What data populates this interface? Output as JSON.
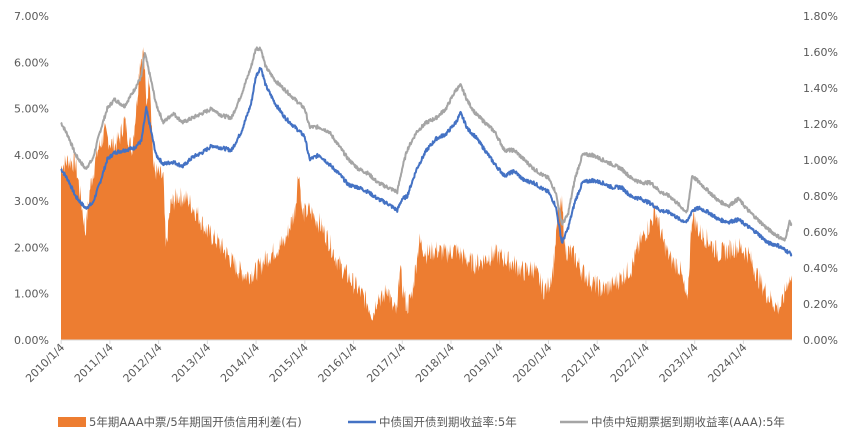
{
  "chart_data": {
    "type": "line",
    "title": "",
    "x_axis": {
      "ticks": [
        "2010/1/4",
        "2011/1/4",
        "2012/1/4",
        "2013/1/4",
        "2014/1/4",
        "2015/1/4",
        "2016/1/4",
        "2017/1/4",
        "2018/1/4",
        "2019/1/4",
        "2020/1/4",
        "2021/1/4",
        "2022/1/4",
        "2023/1/4",
        "2024/1/4"
      ],
      "range": [
        "2010/1/4",
        "2024/12/31"
      ]
    },
    "y_left": {
      "ticks": [
        "0.00%",
        "1.00%",
        "2.00%",
        "3.00%",
        "4.00%",
        "5.00%",
        "6.00%",
        "7.00%"
      ],
      "range": [
        0,
        7
      ]
    },
    "y_right": {
      "ticks": [
        "0.00%",
        "0.20%",
        "0.40%",
        "0.60%",
        "0.80%",
        "1.00%",
        "1.20%",
        "1.40%",
        "1.60%",
        "1.80%"
      ],
      "range": [
        0,
        1.8
      ]
    },
    "grid": false,
    "legend_position": "bottom",
    "series": [
      {
        "name": "5年期AAA中票/5年期国开债信用利差(右)",
        "chart_type": "area",
        "axis": "right",
        "color": "#ED7D31",
        "points": [
          [
            2010.0,
            0.96
          ],
          [
            2010.15,
            1.0
          ],
          [
            2010.3,
            0.98
          ],
          [
            2010.4,
            0.8
          ],
          [
            2010.5,
            0.6
          ],
          [
            2010.6,
            0.85
          ],
          [
            2010.75,
            1.05
          ],
          [
            2010.9,
            1.15
          ],
          [
            2011.0,
            1.1
          ],
          [
            2011.1,
            1.08
          ],
          [
            2011.2,
            1.12
          ],
          [
            2011.3,
            1.22
          ],
          [
            2011.45,
            1.05
          ],
          [
            2011.55,
            1.3
          ],
          [
            2011.62,
            1.55
          ],
          [
            2011.7,
            1.6
          ],
          [
            2011.75,
            1.3
          ],
          [
            2011.82,
            1.48
          ],
          [
            2011.9,
            0.95
          ],
          [
            2012.0,
            0.92
          ],
          [
            2012.1,
            0.9
          ],
          [
            2012.15,
            0.5
          ],
          [
            2012.25,
            0.75
          ],
          [
            2012.4,
            0.8
          ],
          [
            2012.6,
            0.78
          ],
          [
            2012.8,
            0.7
          ],
          [
            2013.0,
            0.6
          ],
          [
            2013.2,
            0.55
          ],
          [
            2013.4,
            0.48
          ],
          [
            2013.6,
            0.4
          ],
          [
            2013.8,
            0.36
          ],
          [
            2014.0,
            0.38
          ],
          [
            2014.2,
            0.45
          ],
          [
            2014.4,
            0.5
          ],
          [
            2014.6,
            0.55
          ],
          [
            2014.8,
            0.72
          ],
          [
            2014.88,
            0.95
          ],
          [
            2014.95,
            0.7
          ],
          [
            2015.1,
            0.72
          ],
          [
            2015.3,
            0.65
          ],
          [
            2015.5,
            0.55
          ],
          [
            2015.7,
            0.42
          ],
          [
            2015.9,
            0.35
          ],
          [
            2016.1,
            0.28
          ],
          [
            2016.3,
            0.2
          ],
          [
            2016.4,
            0.14
          ],
          [
            2016.5,
            0.25
          ],
          [
            2016.6,
            0.22
          ],
          [
            2016.7,
            0.3
          ],
          [
            2016.8,
            0.18
          ],
          [
            2016.9,
            0.15
          ],
          [
            2016.95,
            0.42
          ],
          [
            2017.0,
            0.3
          ],
          [
            2017.1,
            0.18
          ],
          [
            2017.2,
            0.25
          ],
          [
            2017.35,
            0.55
          ],
          [
            2017.5,
            0.48
          ],
          [
            2017.7,
            0.5
          ],
          [
            2017.9,
            0.48
          ],
          [
            2018.1,
            0.5
          ],
          [
            2018.3,
            0.45
          ],
          [
            2018.5,
            0.42
          ],
          [
            2018.7,
            0.45
          ],
          [
            2018.9,
            0.48
          ],
          [
            2019.1,
            0.45
          ],
          [
            2019.3,
            0.42
          ],
          [
            2019.5,
            0.38
          ],
          [
            2019.7,
            0.4
          ],
          [
            2019.9,
            0.28
          ],
          [
            2020.0,
            0.3
          ],
          [
            2020.1,
            0.4
          ],
          [
            2020.2,
            0.7
          ],
          [
            2020.28,
            0.75
          ],
          [
            2020.35,
            0.5
          ],
          [
            2020.5,
            0.48
          ],
          [
            2020.7,
            0.38
          ],
          [
            2020.9,
            0.32
          ],
          [
            2021.1,
            0.28
          ],
          [
            2021.3,
            0.3
          ],
          [
            2021.5,
            0.35
          ],
          [
            2021.7,
            0.4
          ],
          [
            2021.9,
            0.55
          ],
          [
            2022.1,
            0.65
          ],
          [
            2022.2,
            0.72
          ],
          [
            2022.35,
            0.55
          ],
          [
            2022.5,
            0.45
          ],
          [
            2022.7,
            0.4
          ],
          [
            2022.85,
            0.2
          ],
          [
            2022.95,
            0.7
          ],
          [
            2023.1,
            0.6
          ],
          [
            2023.3,
            0.55
          ],
          [
            2023.5,
            0.48
          ],
          [
            2023.7,
            0.5
          ],
          [
            2023.9,
            0.52
          ],
          [
            2024.1,
            0.48
          ],
          [
            2024.3,
            0.35
          ],
          [
            2024.5,
            0.25
          ],
          [
            2024.7,
            0.18
          ],
          [
            2024.8,
            0.2
          ],
          [
            2024.92,
            0.34
          ],
          [
            2025.0,
            0.32
          ]
        ]
      },
      {
        "name": "中债国开债到期收益率:5年",
        "chart_type": "line",
        "axis": "left",
        "color": "#4472C4",
        "points": [
          [
            2010.0,
            3.7
          ],
          [
            2010.15,
            3.45
          ],
          [
            2010.3,
            3.1
          ],
          [
            2010.5,
            2.85
          ],
          [
            2010.65,
            2.95
          ],
          [
            2010.8,
            3.4
          ],
          [
            2010.95,
            3.9
          ],
          [
            2011.1,
            4.05
          ],
          [
            2011.3,
            4.1
          ],
          [
            2011.5,
            4.15
          ],
          [
            2011.65,
            4.3
          ],
          [
            2011.75,
            5.0
          ],
          [
            2011.85,
            4.5
          ],
          [
            2011.95,
            4.0
          ],
          [
            2012.1,
            3.8
          ],
          [
            2012.3,
            3.85
          ],
          [
            2012.5,
            3.75
          ],
          [
            2012.7,
            3.95
          ],
          [
            2012.9,
            4.05
          ],
          [
            2013.1,
            4.2
          ],
          [
            2013.3,
            4.15
          ],
          [
            2013.5,
            4.1
          ],
          [
            2013.7,
            4.5
          ],
          [
            2013.9,
            5.1
          ],
          [
            2014.0,
            5.7
          ],
          [
            2014.1,
            5.9
          ],
          [
            2014.2,
            5.5
          ],
          [
            2014.4,
            5.1
          ],
          [
            2014.6,
            4.8
          ],
          [
            2014.8,
            4.6
          ],
          [
            2015.0,
            4.4
          ],
          [
            2015.1,
            3.9
          ],
          [
            2015.3,
            4.0
          ],
          [
            2015.5,
            3.8
          ],
          [
            2015.7,
            3.6
          ],
          [
            2015.9,
            3.35
          ],
          [
            2016.1,
            3.3
          ],
          [
            2016.3,
            3.2
          ],
          [
            2016.5,
            3.05
          ],
          [
            2016.7,
            2.95
          ],
          [
            2016.9,
            2.8
          ],
          [
            2017.0,
            3.05
          ],
          [
            2017.1,
            3.1
          ],
          [
            2017.3,
            3.7
          ],
          [
            2017.5,
            4.1
          ],
          [
            2017.7,
            4.35
          ],
          [
            2017.9,
            4.45
          ],
          [
            2018.1,
            4.7
          ],
          [
            2018.2,
            4.9
          ],
          [
            2018.35,
            4.55
          ],
          [
            2018.5,
            4.4
          ],
          [
            2018.7,
            4.1
          ],
          [
            2018.9,
            3.8
          ],
          [
            2019.1,
            3.55
          ],
          [
            2019.3,
            3.65
          ],
          [
            2019.5,
            3.45
          ],
          [
            2019.7,
            3.4
          ],
          [
            2019.9,
            3.25
          ],
          [
            2020.0,
            3.2
          ],
          [
            2020.15,
            2.9
          ],
          [
            2020.28,
            2.1
          ],
          [
            2020.4,
            2.4
          ],
          [
            2020.55,
            3.0
          ],
          [
            2020.7,
            3.4
          ],
          [
            2020.9,
            3.45
          ],
          [
            2021.1,
            3.4
          ],
          [
            2021.3,
            3.3
          ],
          [
            2021.5,
            3.3
          ],
          [
            2021.7,
            3.1
          ],
          [
            2021.9,
            3.05
          ],
          [
            2022.1,
            2.95
          ],
          [
            2022.3,
            2.8
          ],
          [
            2022.5,
            2.75
          ],
          [
            2022.7,
            2.6
          ],
          [
            2022.85,
            2.55
          ],
          [
            2022.95,
            2.8
          ],
          [
            2023.1,
            2.85
          ],
          [
            2023.3,
            2.75
          ],
          [
            2023.5,
            2.6
          ],
          [
            2023.7,
            2.55
          ],
          [
            2023.9,
            2.6
          ],
          [
            2024.1,
            2.45
          ],
          [
            2024.3,
            2.3
          ],
          [
            2024.5,
            2.1
          ],
          [
            2024.7,
            2.05
          ],
          [
            2024.85,
            1.95
          ],
          [
            2025.0,
            1.85
          ]
        ]
      },
      {
        "name": "中债中短期票据到期收益率(AAA):5年",
        "chart_type": "line",
        "axis": "left",
        "color": "#A5A5A5",
        "points": [
          [
            2010.0,
            4.7
          ],
          [
            2010.15,
            4.4
          ],
          [
            2010.3,
            4.0
          ],
          [
            2010.5,
            3.7
          ],
          [
            2010.65,
            3.9
          ],
          [
            2010.8,
            4.5
          ],
          [
            2010.95,
            5.0
          ],
          [
            2011.1,
            5.2
          ],
          [
            2011.3,
            5.05
          ],
          [
            2011.5,
            5.4
          ],
          [
            2011.65,
            5.7
          ],
          [
            2011.72,
            6.2
          ],
          [
            2011.85,
            5.6
          ],
          [
            2011.95,
            5.1
          ],
          [
            2012.1,
            4.7
          ],
          [
            2012.3,
            4.9
          ],
          [
            2012.5,
            4.7
          ],
          [
            2012.7,
            4.8
          ],
          [
            2012.9,
            4.9
          ],
          [
            2013.1,
            5.0
          ],
          [
            2013.3,
            4.85
          ],
          [
            2013.5,
            4.8
          ],
          [
            2013.7,
            5.3
          ],
          [
            2013.9,
            5.9
          ],
          [
            2014.0,
            6.3
          ],
          [
            2014.1,
            6.3
          ],
          [
            2014.2,
            5.9
          ],
          [
            2014.4,
            5.6
          ],
          [
            2014.6,
            5.4
          ],
          [
            2014.8,
            5.2
          ],
          [
            2015.0,
            5.0
          ],
          [
            2015.1,
            4.6
          ],
          [
            2015.3,
            4.6
          ],
          [
            2015.5,
            4.5
          ],
          [
            2015.7,
            4.2
          ],
          [
            2015.9,
            3.9
          ],
          [
            2016.1,
            3.7
          ],
          [
            2016.3,
            3.6
          ],
          [
            2016.5,
            3.4
          ],
          [
            2016.7,
            3.3
          ],
          [
            2016.9,
            3.2
          ],
          [
            2017.0,
            3.7
          ],
          [
            2017.1,
            4.1
          ],
          [
            2017.3,
            4.5
          ],
          [
            2017.5,
            4.7
          ],
          [
            2017.7,
            4.8
          ],
          [
            2017.9,
            5.0
          ],
          [
            2018.1,
            5.4
          ],
          [
            2018.2,
            5.5
          ],
          [
            2018.35,
            5.15
          ],
          [
            2018.5,
            4.9
          ],
          [
            2018.7,
            4.7
          ],
          [
            2018.9,
            4.5
          ],
          [
            2019.1,
            4.1
          ],
          [
            2019.3,
            4.1
          ],
          [
            2019.5,
            3.9
          ],
          [
            2019.7,
            3.7
          ],
          [
            2019.9,
            3.55
          ],
          [
            2020.0,
            3.5
          ],
          [
            2020.15,
            3.2
          ],
          [
            2020.28,
            2.5
          ],
          [
            2020.4,
            2.7
          ],
          [
            2020.55,
            3.5
          ],
          [
            2020.7,
            4.0
          ],
          [
            2020.9,
            4.0
          ],
          [
            2021.1,
            3.9
          ],
          [
            2021.3,
            3.8
          ],
          [
            2021.5,
            3.7
          ],
          [
            2021.7,
            3.5
          ],
          [
            2021.9,
            3.4
          ],
          [
            2022.1,
            3.4
          ],
          [
            2022.3,
            3.2
          ],
          [
            2022.5,
            3.1
          ],
          [
            2022.7,
            2.9
          ],
          [
            2022.85,
            2.75
          ],
          [
            2022.95,
            3.55
          ],
          [
            2023.1,
            3.4
          ],
          [
            2023.3,
            3.2
          ],
          [
            2023.5,
            3.0
          ],
          [
            2023.7,
            2.9
          ],
          [
            2023.9,
            3.05
          ],
          [
            2024.1,
            2.8
          ],
          [
            2024.3,
            2.6
          ],
          [
            2024.5,
            2.4
          ],
          [
            2024.7,
            2.25
          ],
          [
            2024.85,
            2.15
          ],
          [
            2024.95,
            2.55
          ],
          [
            2025.0,
            2.5
          ]
        ]
      }
    ]
  }
}
